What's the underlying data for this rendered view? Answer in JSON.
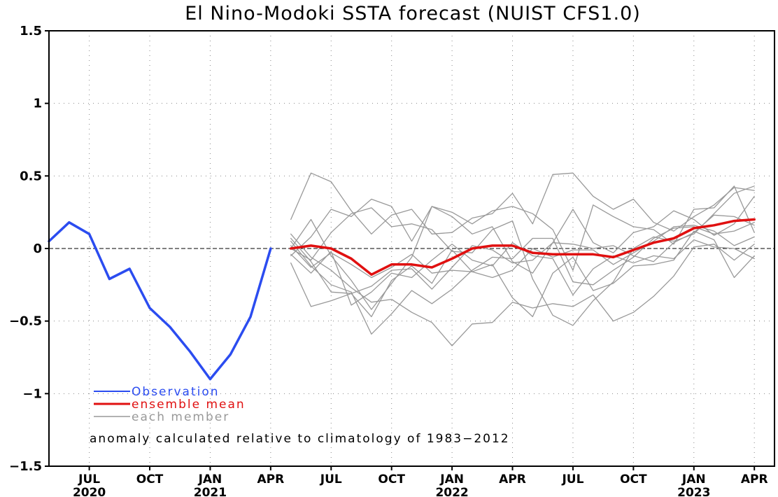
{
  "chart_data": {
    "type": "line",
    "title": "El Nino-Modoki SSTA forecast (NUIST CFS1.0)",
    "xlabel": "",
    "ylabel": "",
    "ylim": [
      -1.5,
      1.5
    ],
    "yticks": [
      1.5,
      1,
      0.5,
      0,
      -0.5,
      -1,
      -1.5
    ],
    "ytick_labels": [
      "1.5",
      "1",
      "0.5",
      "0",
      "−0.5",
      "−1",
      "−1.5"
    ],
    "xlim": [
      "2020-05",
      "2023-05"
    ],
    "x_ticks": [
      {
        "date": "2020-07",
        "label": "JUL",
        "year": "2020"
      },
      {
        "date": "2020-10",
        "label": "OCT",
        "year": ""
      },
      {
        "date": "2021-01",
        "label": "JAN",
        "year": "2021"
      },
      {
        "date": "2021-04",
        "label": "APR",
        "year": ""
      },
      {
        "date": "2021-07",
        "label": "JUL",
        "year": ""
      },
      {
        "date": "2021-10",
        "label": "OCT",
        "year": ""
      },
      {
        "date": "2022-01",
        "label": "JAN",
        "year": "2022"
      },
      {
        "date": "2022-04",
        "label": "APR",
        "year": ""
      },
      {
        "date": "2022-07",
        "label": "JUL",
        "year": ""
      },
      {
        "date": "2022-10",
        "label": "OCT",
        "year": ""
      },
      {
        "date": "2023-01",
        "label": "JAN",
        "year": "2023"
      },
      {
        "date": "2023-04",
        "label": "APR",
        "year": ""
      }
    ],
    "grid": true,
    "zero_line": true,
    "legend_position": "bottom-left",
    "annotation": "anomaly calculated relative to climatology of 1983−2012",
    "observation": {
      "name": "Observation",
      "color": "#2b4cf0",
      "x": [
        "2020-05",
        "2020-06",
        "2020-07",
        "2020-08",
        "2020-09",
        "2020-10",
        "2020-11",
        "2020-12",
        "2021-01",
        "2021-02",
        "2021-03",
        "2021-04"
      ],
      "y": [
        0.05,
        0.18,
        0.1,
        -0.21,
        -0.14,
        -0.41,
        -0.54,
        -0.71,
        -0.9,
        -0.73,
        -0.47,
        0.0
      ]
    },
    "ensemble_mean": {
      "name": "ensemble mean",
      "color": "#e01010",
      "x": [
        "2021-05",
        "2021-06",
        "2021-07",
        "2021-08",
        "2021-09",
        "2021-10",
        "2021-11",
        "2021-12",
        "2022-01",
        "2022-02",
        "2022-03",
        "2022-04",
        "2022-05",
        "2022-06",
        "2022-07",
        "2022-08",
        "2022-09",
        "2022-10",
        "2022-11",
        "2022-12",
        "2023-01",
        "2023-02",
        "2023-03",
        "2023-04"
      ],
      "y": [
        0.0,
        0.02,
        0.0,
        -0.07,
        -0.18,
        -0.11,
        -0.11,
        -0.13,
        -0.07,
        0.0,
        0.02,
        0.02,
        -0.03,
        -0.04,
        -0.04,
        -0.04,
        -0.06,
        -0.01,
        0.04,
        0.07,
        0.14,
        0.16,
        0.19,
        0.2
      ]
    },
    "members": {
      "name": "each member",
      "color": "#999999",
      "x": [
        "2021-05",
        "2021-06",
        "2021-07",
        "2021-08",
        "2021-09",
        "2021-10",
        "2021-11",
        "2021-12",
        "2022-01",
        "2022-02",
        "2022-03",
        "2022-04",
        "2022-05",
        "2022-06",
        "2022-07",
        "2022-08",
        "2022-09",
        "2022-10",
        "2022-11",
        "2022-12",
        "2023-01",
        "2023-02",
        "2023-03",
        "2023-04"
      ],
      "series": [
        [
          0.2,
          0.52,
          0.46,
          0.26,
          0.1,
          0.23,
          0.27,
          0.1,
          0.11,
          0.21,
          0.24,
          0.38,
          0.17,
          0.51,
          0.52,
          0.36,
          0.27,
          0.34,
          0.18,
          0.12,
          0.22,
          0.3,
          0.42,
          0.4
        ],
        [
          0.0,
          0.2,
          -0.05,
          -0.22,
          -0.42,
          -0.24,
          -0.06,
          0.29,
          0.25,
          0.17,
          0.26,
          0.29,
          0.24,
          0.13,
          -0.15,
          0.3,
          0.22,
          0.15,
          0.13,
          0.03,
          0.27,
          0.28,
          0.43,
          0.11
        ],
        [
          -0.1,
          -0.4,
          -0.36,
          -0.31,
          -0.47,
          -0.22,
          -0.12,
          -0.24,
          -0.01,
          -0.16,
          -0.11,
          -0.34,
          -0.47,
          -0.17,
          -0.06,
          -0.29,
          -0.24,
          -0.12,
          -0.11,
          -0.08,
          0.12,
          0.06,
          -0.2,
          -0.05
        ],
        [
          0.1,
          -0.06,
          -0.15,
          -0.27,
          -0.37,
          -0.35,
          -0.44,
          -0.51,
          -0.67,
          -0.52,
          -0.51,
          -0.37,
          -0.41,
          -0.38,
          -0.4,
          -0.32,
          -0.5,
          -0.44,
          -0.33,
          -0.19,
          0.01,
          0.03,
          -0.08,
          0.03
        ],
        [
          -0.05,
          0.08,
          0.27,
          0.22,
          0.34,
          0.29,
          0.05,
          0.29,
          0.22,
          0.1,
          0.15,
          -0.09,
          -0.17,
          0.04,
          0.27,
          0.04,
          -0.03,
          0.11,
          0.15,
          0.26,
          0.2,
          0.09,
          0.17,
          0.36
        ],
        [
          0.0,
          -0.08,
          0.11,
          0.24,
          0.28,
          0.15,
          0.17,
          0.13,
          -0.02,
          -0.03,
          0.13,
          0.19,
          -0.21,
          -0.46,
          -0.53,
          -0.36,
          -0.23,
          0.0,
          0.08,
          0.05,
          0.1,
          0.24,
          0.38,
          0.43
        ],
        [
          0.05,
          -0.12,
          -0.25,
          -0.3,
          -0.59,
          -0.45,
          -0.29,
          -0.38,
          -0.28,
          -0.15,
          -0.06,
          -0.07,
          0.07,
          0.07,
          -0.23,
          -0.25,
          -0.15,
          -0.06,
          0.07,
          0.14,
          0.15,
          0.1,
          0.12,
          0.18
        ],
        [
          -0.04,
          -0.17,
          -0.02,
          -0.39,
          -0.3,
          -0.17,
          -0.2,
          -0.08,
          0.03,
          -0.08,
          -0.12,
          0.04,
          -0.05,
          -0.07,
          -0.32,
          -0.14,
          -0.05,
          -0.1,
          -0.05,
          -0.07,
          0.06,
          0.01,
          0.0,
          -0.07
        ],
        [
          0.02,
          -0.13,
          -0.03,
          -0.11,
          -0.2,
          -0.13,
          -0.04,
          -0.17,
          -0.15,
          -0.16,
          -0.2,
          -0.15,
          0.0,
          -0.06,
          -0.01,
          -0.01,
          -0.11,
          -0.03,
          0.05,
          0.15,
          0.16,
          0.12,
          0.02,
          0.08
        ],
        [
          0.07,
          -0.09,
          -0.3,
          -0.31,
          -0.26,
          -0.15,
          -0.14,
          -0.28,
          -0.13,
          0.02,
          -0.01,
          -0.1,
          -0.08,
          0.04,
          0.03,
          0.0,
          0.02,
          -0.05,
          -0.09,
          0.04,
          0.11,
          0.23,
          0.22,
          0.16
        ]
      ]
    }
  }
}
